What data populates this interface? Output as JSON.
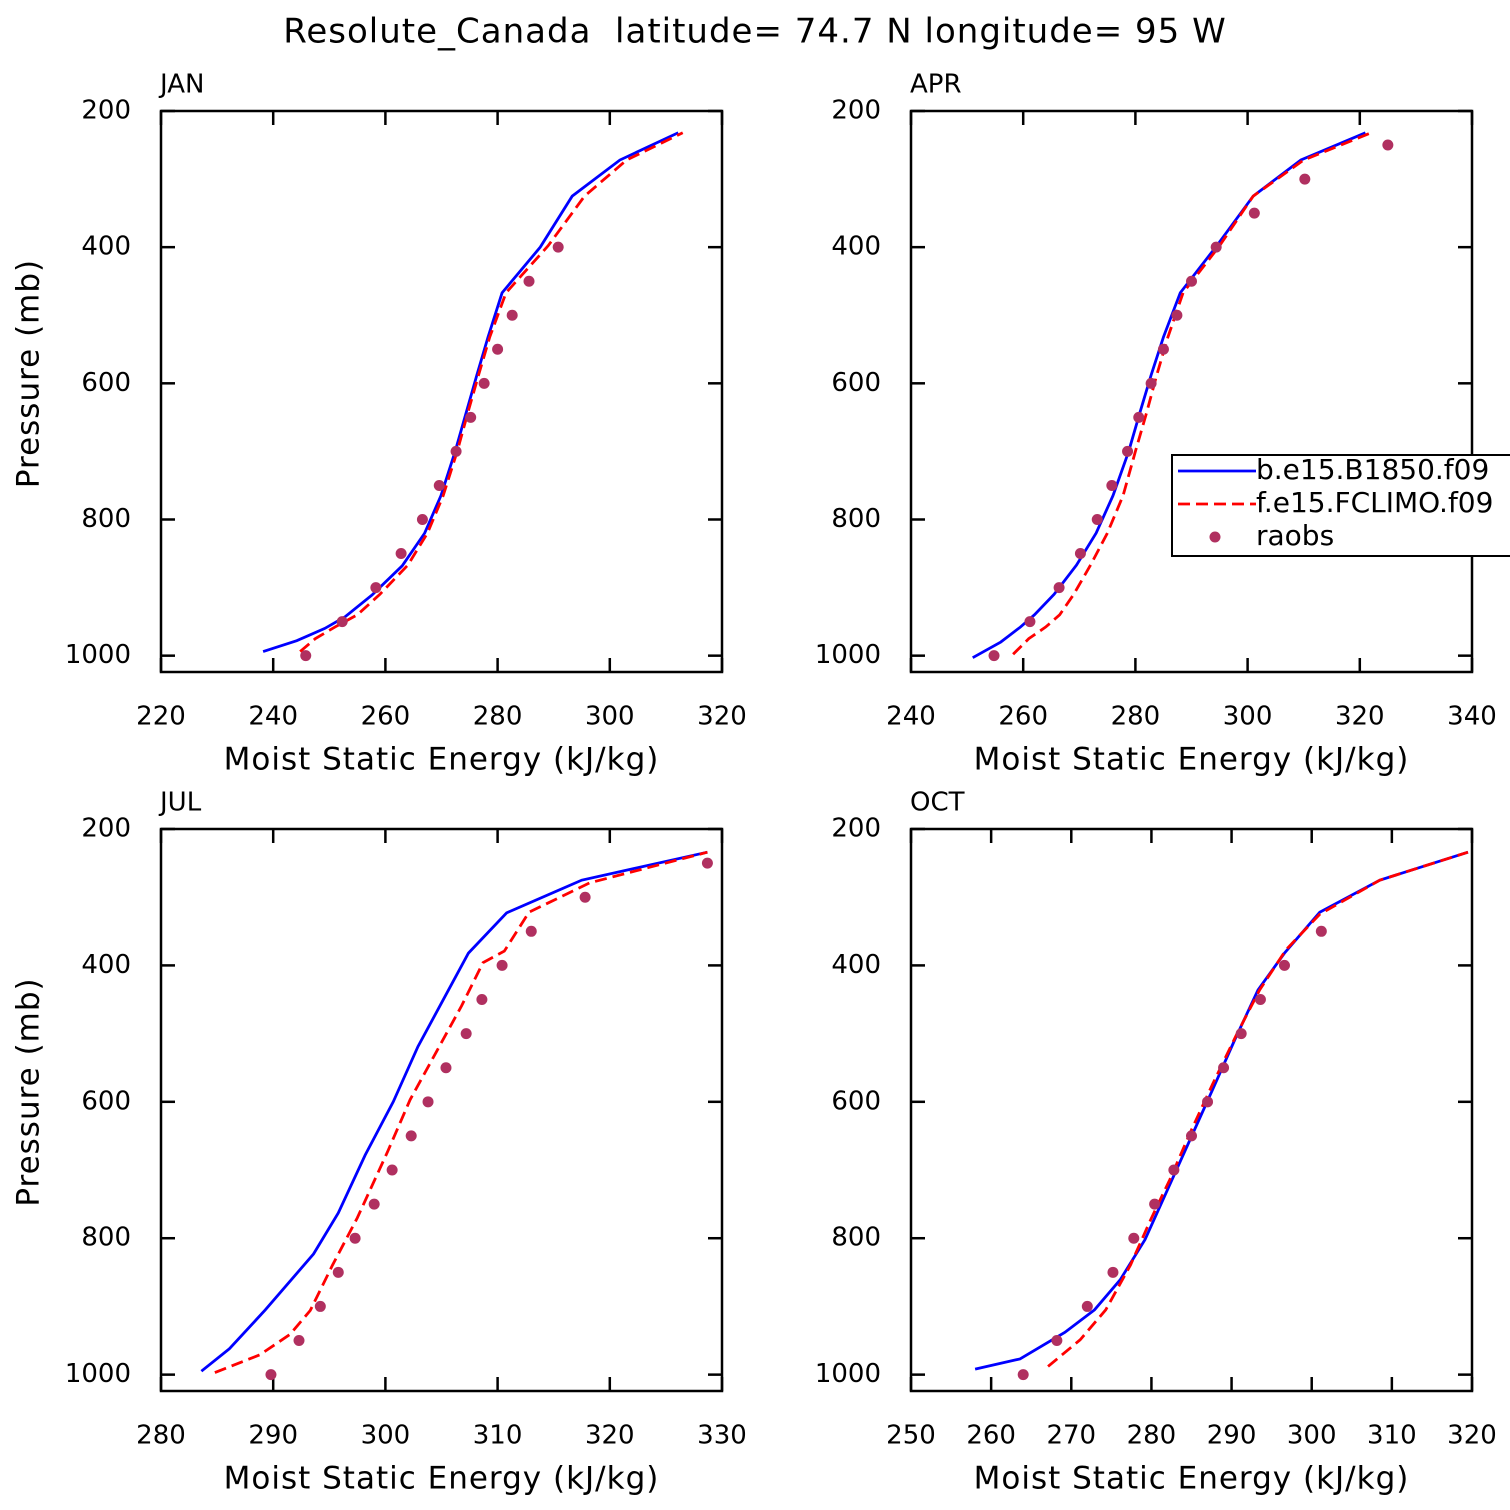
{
  "title": "Resolute_Canada  latitude= 74.7 N longitude= 95 W",
  "chart_data": [
    {
      "type": "line",
      "title": "JAN",
      "xlabel": "Moist Static Energy (kJ/kg)",
      "ylabel": "Pressure (mb)",
      "xlim": [
        220,
        320
      ],
      "xticks": [
        220,
        240,
        260,
        280,
        300,
        320
      ],
      "ylim": [
        200,
        1024
      ],
      "y_inverted": true,
      "yticks": [
        200,
        400,
        600,
        800,
        1000
      ],
      "series": [
        {
          "color": "#0000ff",
          "dash": "solid",
          "mode": "lines",
          "y": [
            994,
            978,
            960,
            943,
            911,
            868,
            820,
            765,
            701,
            643,
            588,
            532,
            467,
            400,
            325,
            272,
            232
          ],
          "values": [
            238.2,
            244.2,
            249.2,
            252.8,
            257.6,
            263,
            267,
            269.9,
            272.4,
            274.4,
            276.3,
            278.3,
            280.8,
            287.6,
            293.3,
            301.8,
            312.2
          ]
        },
        {
          "color": "#ff0000",
          "dash": "dashed",
          "mode": "lines",
          "y": [
            994,
            975,
            958,
            940,
            910,
            867,
            820,
            765,
            700,
            643,
            588,
            532,
            467,
            398,
            325,
            272,
            232
          ],
          "values": [
            244.8,
            247.5,
            251,
            255,
            259,
            264,
            267.5,
            270.3,
            272.8,
            274.7,
            276.6,
            278.6,
            281.5,
            289,
            295.5,
            303,
            313
          ]
        },
        {
          "color": "#b03060",
          "mode": "markers",
          "y": [
            1000,
            950,
            900,
            850,
            800,
            750,
            700,
            650,
            600,
            550,
            500,
            450,
            400
          ],
          "values": [
            245.8,
            252.3,
            258.3,
            262.8,
            266.6,
            269.6,
            272.6,
            275.2,
            277.6,
            280,
            282.6,
            285.6,
            290.8
          ]
        }
      ]
    },
    {
      "type": "line",
      "title": "APR",
      "xlabel": "Moist Static Energy (kJ/kg)",
      "xlim": [
        240,
        340
      ],
      "xticks": [
        240,
        260,
        280,
        300,
        320,
        340
      ],
      "ylim": [
        200,
        1024
      ],
      "y_inverted": true,
      "yticks": [
        200,
        400,
        600,
        800,
        1000
      ],
      "legend": true,
      "series": [
        {
          "name": "b.e15.B1850.f09",
          "color": "#0000ff",
          "dash": "solid",
          "mode": "lines",
          "y": [
            1003,
            980,
            958,
            940,
            910,
            867,
            820,
            765,
            700,
            643,
            588,
            532,
            467,
            398,
            325,
            272,
            232
          ],
          "values": [
            251,
            256,
            259.5,
            262,
            265.5,
            269.5,
            273,
            276,
            278.8,
            280.8,
            282.8,
            285,
            288,
            294.5,
            301,
            309.5,
            321
          ]
        },
        {
          "name": "f.e15.FCLIMO.f09",
          "color": "#ff0000",
          "dash": "dashed",
          "mode": "lines",
          "y": [
            998,
            975,
            958,
            940,
            910,
            867,
            820,
            765,
            700,
            643,
            588,
            532,
            467,
            398,
            325,
            272,
            232
          ],
          "values": [
            258.2,
            261,
            264,
            266.5,
            269,
            272,
            275,
            277.8,
            280,
            282,
            283.8,
            285.8,
            288.5,
            295,
            301,
            310,
            322
          ]
        },
        {
          "name": "raobs",
          "color": "#b03060",
          "mode": "markers",
          "y": [
            1000,
            950,
            900,
            850,
            800,
            750,
            700,
            650,
            600,
            550,
            500,
            450,
            400,
            350,
            300,
            250
          ],
          "values": [
            254.8,
            261.2,
            266.4,
            270.2,
            273.2,
            275.8,
            278.6,
            280.6,
            282.8,
            285,
            287.4,
            290,
            294.4,
            301.2,
            310.2,
            325
          ]
        }
      ]
    },
    {
      "type": "line",
      "title": "JUL",
      "xlabel": "Moist Static Energy (kJ/kg)",
      "ylabel": "Pressure (mb)",
      "xlim": [
        280,
        330
      ],
      "xticks": [
        280,
        290,
        300,
        310,
        320,
        330
      ],
      "ylim": [
        200,
        1024
      ],
      "y_inverted": true,
      "yticks": [
        200,
        400,
        600,
        800,
        1000
      ],
      "series": [
        {
          "color": "#0000ff",
          "dash": "solid",
          "mode": "lines",
          "y": [
            995,
            962,
            905,
            823,
            763,
            678,
            600,
            519,
            449,
            382,
            323,
            275,
            234
          ],
          "values": [
            283.6,
            286.1,
            289.3,
            293.6,
            295.8,
            298.2,
            300.7,
            302.9,
            305.2,
            307.4,
            310.8,
            317.5,
            328.7
          ]
        },
        {
          "color": "#ff0000",
          "dash": "dashed",
          "mode": "lines",
          "y": [
            997,
            971,
            941,
            906,
            839,
            770,
            673,
            597,
            525,
            459,
            396,
            379,
            322,
            279,
            234
          ],
          "values": [
            284.8,
            288.8,
            291.5,
            293.3,
            295.3,
            297.5,
            300.2,
            302.2,
            304.6,
            306.8,
            308.7,
            310.6,
            312.8,
            318.2,
            328.7
          ]
        },
        {
          "color": "#b03060",
          "mode": "markers",
          "y": [
            1000,
            950,
            900,
            850,
            800,
            750,
            700,
            650,
            600,
            550,
            500,
            450,
            400,
            350,
            300,
            250
          ],
          "values": [
            289.8,
            292.3,
            294.2,
            295.8,
            297.3,
            299,
            300.6,
            302.3,
            303.8,
            305.4,
            307.2,
            308.6,
            310.4,
            313,
            317.8,
            328.7
          ]
        }
      ]
    },
    {
      "type": "line",
      "title": "OCT",
      "xlabel": "Moist Static Energy (kJ/kg)",
      "xlim": [
        250,
        320
      ],
      "xticks": [
        250,
        260,
        270,
        280,
        290,
        300,
        310,
        320
      ],
      "ylim": [
        200,
        1024
      ],
      "y_inverted": true,
      "yticks": [
        200,
        400,
        600,
        800,
        1000
      ],
      "series": [
        {
          "color": "#0000ff",
          "dash": "solid",
          "mode": "lines",
          "y": [
            992,
            977,
            938,
            905,
            861,
            802,
            729,
            656,
            583,
            509,
            436,
            382,
            322,
            275,
            234
          ],
          "values": [
            258,
            263.6,
            269.2,
            272.9,
            276.1,
            279.2,
            282,
            284.8,
            287.6,
            290.4,
            293.3,
            296.6,
            301,
            308.5,
            319.5
          ]
        },
        {
          "color": "#ff0000",
          "dash": "dashed",
          "mode": "lines",
          "y": [
            988,
            949,
            905,
            839,
            773,
            714,
            641,
            575,
            502,
            436,
            377,
            325,
            275,
            234
          ],
          "values": [
            267.1,
            271.1,
            274.3,
            277.4,
            279.9,
            282.3,
            285,
            287.6,
            290.6,
            293.5,
            296.8,
            301,
            308.5,
            319.5
          ]
        },
        {
          "color": "#b03060",
          "mode": "markers",
          "y": [
            1000,
            950,
            900,
            850,
            800,
            750,
            700,
            650,
            600,
            550,
            500,
            450,
            400,
            350
          ],
          "values": [
            264,
            268.2,
            272,
            275.2,
            277.8,
            280.4,
            282.8,
            285,
            287,
            289,
            291.2,
            293.6,
            296.6,
            301.2
          ]
        }
      ]
    }
  ]
}
